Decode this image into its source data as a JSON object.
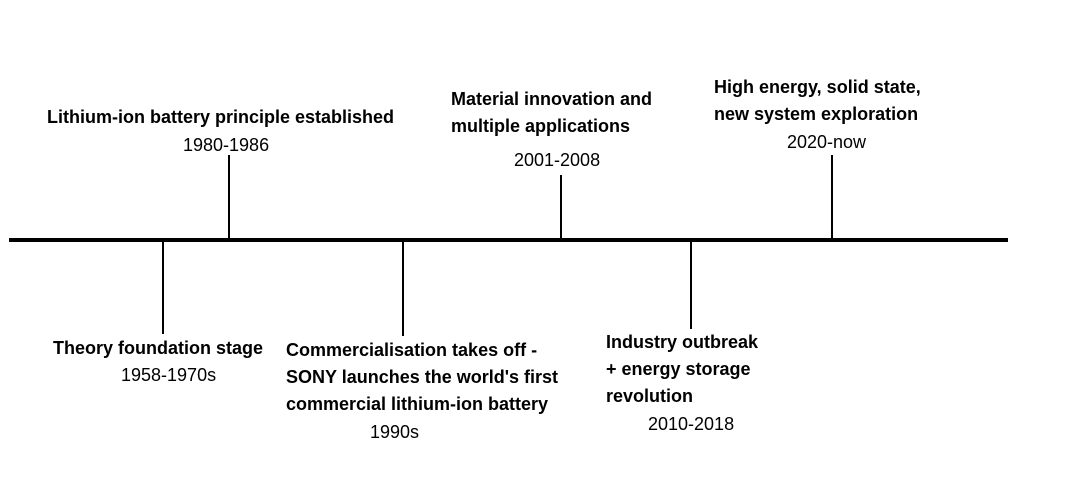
{
  "timeline": {
    "events": [
      {
        "title": "Theory foundation stage",
        "years": "1958-1970s"
      },
      {
        "title": "Lithium-ion battery principle established",
        "years": "1980-1986"
      },
      {
        "title_lines": [
          "Commercialisation takes off -",
          "SONY launches the world's first",
          "commercial lithium-ion battery"
        ],
        "years": "1990s"
      },
      {
        "title_lines": [
          "Material innovation and",
          "multiple applications"
        ],
        "years": "2001-2008"
      },
      {
        "title_lines": [
          "Industry outbreak",
          "+ energy storage",
          "revolution"
        ],
        "years": "2010-2018"
      },
      {
        "title_lines": [
          "High energy, solid state,",
          "new system exploration"
        ],
        "years": "2020-now"
      }
    ]
  }
}
